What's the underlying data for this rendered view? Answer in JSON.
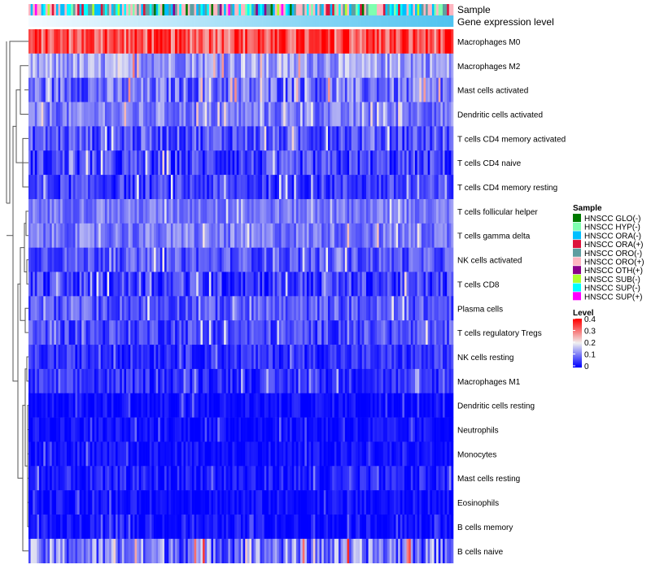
{
  "chart_data": {
    "type": "heatmap",
    "title": "",
    "n_columns": 200,
    "annotation_tracks": [
      "Sample",
      "Gene expression level"
    ],
    "rows": [
      {
        "label": "Macrophages M0",
        "mean": 0.33,
        "spread": 0.08
      },
      {
        "label": "Macrophages M2",
        "mean": 0.13,
        "spread": 0.06
      },
      {
        "label": "Mast cells activated",
        "mean": 0.09,
        "spread": 0.07
      },
      {
        "label": "Dendritic cells activated",
        "mean": 0.1,
        "spread": 0.05
      },
      {
        "label": "T cells CD4 memory activated",
        "mean": 0.07,
        "spread": 0.06
      },
      {
        "label": "T cells CD4 naive",
        "mean": 0.05,
        "spread": 0.06
      },
      {
        "label": "T cells CD4 memory resting",
        "mean": 0.05,
        "spread": 0.05
      },
      {
        "label": "T cells follicular helper",
        "mean": 0.1,
        "spread": 0.04
      },
      {
        "label": "T cells gamma delta",
        "mean": 0.1,
        "spread": 0.05
      },
      {
        "label": "NK cells activated",
        "mean": 0.07,
        "spread": 0.05
      },
      {
        "label": "T cells CD8",
        "mean": 0.05,
        "spread": 0.06
      },
      {
        "label": "Plasma cells",
        "mean": 0.07,
        "spread": 0.05
      },
      {
        "label": "T cells regulatory  Tregs",
        "mean": 0.06,
        "spread": 0.05
      },
      {
        "label": "NK cells resting",
        "mean": 0.04,
        "spread": 0.04
      },
      {
        "label": "Macrophages M1",
        "mean": 0.04,
        "spread": 0.04
      },
      {
        "label": "Dendritic cells resting",
        "mean": 0.01,
        "spread": 0.03
      },
      {
        "label": "Neutrophils",
        "mean": 0.01,
        "spread": 0.03
      },
      {
        "label": "Monocytes",
        "mean": 0.01,
        "spread": 0.03
      },
      {
        "label": "Mast cells resting",
        "mean": 0.02,
        "spread": 0.04
      },
      {
        "label": "Eosinophils",
        "mean": 0.01,
        "spread": 0.03
      },
      {
        "label": "B cells memory",
        "mean": 0.01,
        "spread": 0.03
      },
      {
        "label": "B cells naive",
        "mean": 0.1,
        "spread": 0.09
      }
    ],
    "legend_sample": {
      "title": "Sample",
      "items": [
        {
          "label": "HNSCC GLO(-)",
          "color": "#007a00"
        },
        {
          "label": "HNSCC HYP(-)",
          "color": "#7fffb0"
        },
        {
          "label": "HNSCC ORA(-)",
          "color": "#00bfff"
        },
        {
          "label": "HNSCC ORA(+)",
          "color": "#dc143c"
        },
        {
          "label": "HNSCC ORO(-)",
          "color": "#5f9ea0"
        },
        {
          "label": "HNSCC ORO(+)",
          "color": "#ffb6c1"
        },
        {
          "label": "HNSCC OTH(+)",
          "color": "#8b008b"
        },
        {
          "label": "HNSCC SUB(-)",
          "color": "#adff2f"
        },
        {
          "label": "HNSCC SUP(-)",
          "color": "#00ffff"
        },
        {
          "label": "HNSCC SUP(+)",
          "color": "#ff00ff"
        }
      ]
    },
    "legend_level": {
      "title": "Level",
      "ticks": [
        "0.4",
        "0.3",
        "0.2",
        "0.1",
        "0"
      ],
      "range": [
        0,
        0.4
      ],
      "colors": [
        "#0000ff",
        "#f0f0f0",
        "#ff0000"
      ]
    },
    "expression_gradient": [
      "#f6fbff",
      "#4fc3f0"
    ]
  }
}
